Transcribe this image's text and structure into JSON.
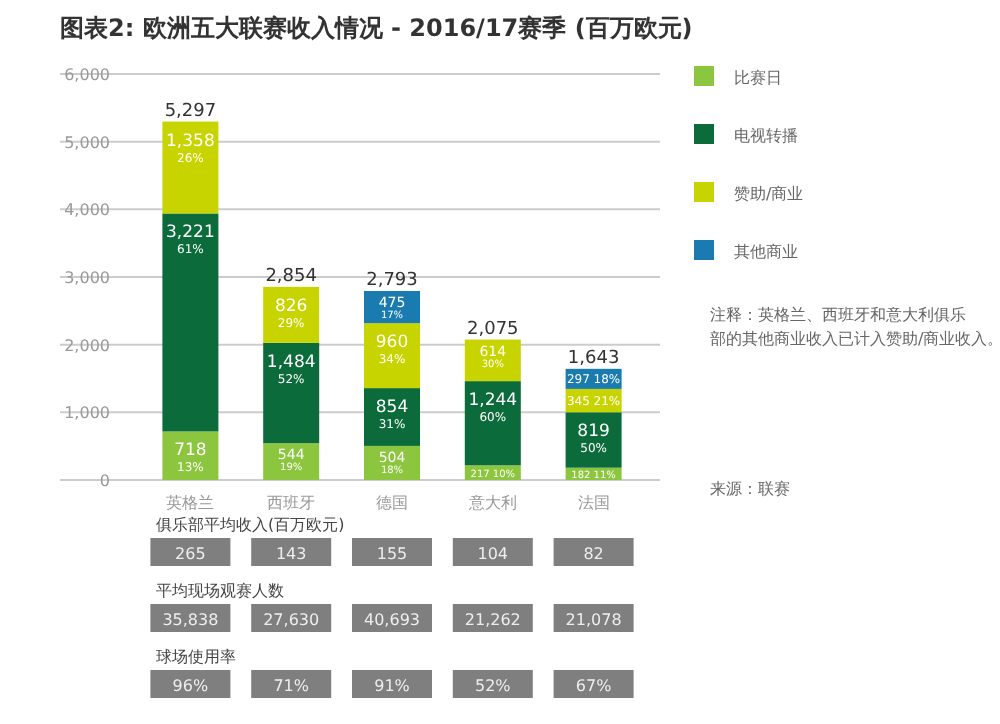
{
  "chart_data": [
    {
      "type": "bar",
      "stacked": true,
      "title": "图表2: 欧洲五大联赛收入情况 - 2016/17赛季 (百万欧元)",
      "categories": [
        "英格兰",
        "西班牙",
        "德国",
        "意大利",
        "法国"
      ],
      "ylim": [
        0,
        6000
      ],
      "yticks": [
        {
          "value": 0,
          "label": "0"
        },
        {
          "value": 1000,
          "label": "1,000"
        },
        {
          "value": 2000,
          "label": "2,000"
        },
        {
          "value": 3000,
          "label": "3,000"
        },
        {
          "value": 4000,
          "label": "4,000"
        },
        {
          "value": 5000,
          "label": "5,000"
        },
        {
          "value": 6000,
          "label": "6,000"
        }
      ],
      "grid": "y",
      "legend": "right",
      "series": [
        {
          "name": "比赛日",
          "color": "#8cc63e",
          "values": [
            718,
            544,
            504,
            217,
            182
          ],
          "value_labels": [
            "718\n13%",
            "544\n19%",
            "504\n18%",
            "217\n10%",
            "182\n11%"
          ]
        },
        {
          "name": "电视转播",
          "color": "#0b6b3a",
          "values": [
            3221,
            1484,
            854,
            1244,
            819
          ],
          "value_labels": [
            "3,221\n61%",
            "1,484\n52%",
            "854\n31%",
            "1,244\n60%",
            "819\n50%"
          ]
        },
        {
          "name": "赞助/商业",
          "color": "#c8d400",
          "values": [
            1358,
            826,
            960,
            614,
            345
          ],
          "value_labels": [
            "1,358\n26%",
            "826\n29%",
            "960\n34%",
            "614\n30%",
            "345\n21%"
          ]
        },
        {
          "name": "其他商业",
          "color": "#1a7bb0",
          "values": [
            null,
            null,
            475,
            null,
            297
          ],
          "value_labels": [
            null,
            null,
            "475\n17%",
            null,
            "297\n18%"
          ]
        }
      ],
      "totals": [
        "5,297",
        "2,854",
        "2,793",
        "2,075",
        "1,643"
      ],
      "annotations": [
        "注释：英格兰、西班牙和意大利俱乐部的其他商业收入已计入赞助/商业收入。",
        "来源：联赛"
      ]
    },
    {
      "type": "other",
      "annotations": [
        "俱乐部平均收入(百万欧元)",
        "265",
        "143",
        "155",
        "104",
        "82",
        "平均现场观赛人数",
        "35,838",
        "27,630",
        "40,693",
        "21,262",
        "21,078",
        "球场使用率",
        "96%",
        "71%",
        "91%",
        "52%",
        "67%"
      ]
    }
  ]
}
